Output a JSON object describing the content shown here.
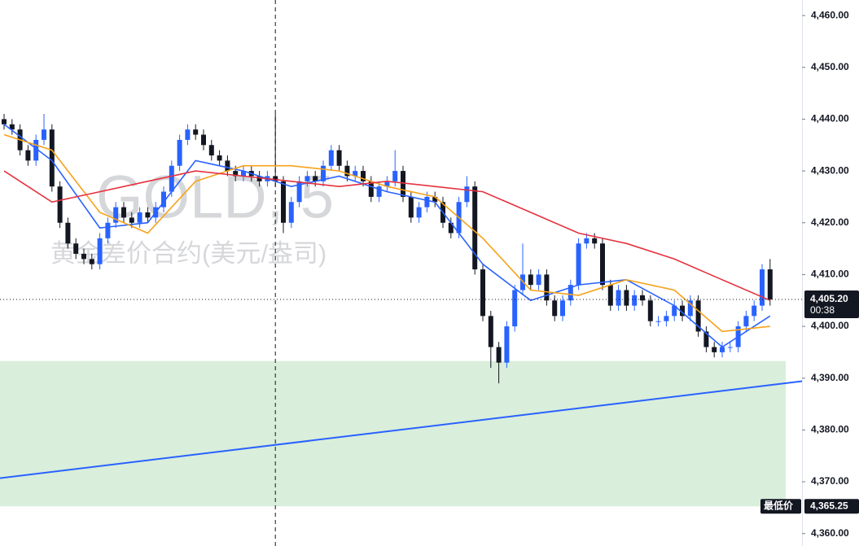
{
  "chart_data": {
    "type": "candlestick",
    "title": "GOLD, 5",
    "subtitle": "黄金差价合约(美元/盎司)",
    "up_color": "#2962ff",
    "down_color": "#131722",
    "open": [
      4440,
      4439,
      4438,
      4434,
      4432,
      4436,
      4438,
      4427,
      4420,
      4416,
      4414,
      4413,
      4412,
      4417,
      4420,
      4423,
      4421,
      4420,
      4422,
      4421,
      4423,
      4426,
      4431,
      4436,
      4438,
      4437,
      4435,
      4433,
      4432,
      4430,
      4429,
      4430,
      4429,
      4428,
      4429,
      4428,
      4420,
      4424,
      4428,
      4429,
      4428,
      4431,
      4434,
      4431,
      4429,
      4430,
      4428,
      4425,
      4427,
      4428,
      4430,
      4425,
      4421,
      4423,
      4425,
      4424,
      4420,
      4418,
      4424,
      4427,
      4411,
      4402,
      4396,
      4393,
      4400,
      4407,
      4410,
      4408,
      4410,
      4405,
      4402,
      4405,
      4408,
      4416,
      4417,
      4416,
      4408,
      4404,
      4407,
      4404,
      4406,
      4405,
      4401,
      4401,
      4402,
      4404,
      4402,
      4405,
      4399,
      4396,
      4395,
      4396,
      4396,
      4400,
      4402,
      4404,
      4411
    ],
    "high": [
      4441,
      4440,
      4439,
      4435,
      4437,
      4441,
      4439,
      4428,
      4421,
      4417,
      4415,
      4414,
      4418,
      4421,
      4424,
      4424,
      4422,
      4423,
      4423,
      4424,
      4427,
      4432,
      4437,
      4439,
      4439,
      4438,
      4436,
      4434,
      4433,
      4431,
      4431,
      4431,
      4430,
      4430,
      4441,
      4429,
      4425,
      4429,
      4430,
      4430,
      4432,
      4435,
      4435,
      4432,
      4431,
      4431,
      4429,
      4428,
      4429,
      4434,
      4431,
      4426,
      4424,
      4426,
      4426,
      4425,
      4421,
      4425,
      4429,
      4428,
      4412,
      4403,
      4397,
      4401,
      4408,
      4416,
      4411,
      4411,
      4411,
      4406,
      4406,
      4409,
      4417,
      4418,
      4418,
      4417,
      4409,
      4408,
      4408,
      4407,
      4407,
      4406,
      4402,
      4403,
      4405,
      4405,
      4406,
      4406,
      4400,
      4397,
      4397,
      4397,
      4401,
      4403,
      4405,
      4412,
      4413
    ],
    "low": [
      4438,
      4437,
      4433,
      4431,
      4431,
      4435,
      4426,
      4419,
      4415,
      4413,
      4412,
      4411,
      4411,
      4416,
      4419,
      4420,
      4419,
      4419,
      4420,
      4420,
      4422,
      4425,
      4430,
      4435,
      4436,
      4434,
      4432,
      4431,
      4429,
      4428,
      4428,
      4428,
      4427,
      4427,
      4427,
      4418,
      4419,
      4423,
      4427,
      4427,
      4427,
      4430,
      4430,
      4428,
      4428,
      4427,
      4424,
      4424,
      4426,
      4427,
      4424,
      4420,
      4420,
      4422,
      4423,
      4419,
      4417,
      4417,
      4423,
      4410,
      4401,
      4392,
      4389,
      4392,
      4399,
      4406,
      4407,
      4407,
      4404,
      4401,
      4401,
      4404,
      4407,
      4415,
      4415,
      4407,
      4403,
      4403,
      4403,
      4403,
      4404,
      4400,
      4400,
      4400,
      4401,
      4401,
      4401,
      4398,
      4395,
      4394,
      4394,
      4395,
      4395,
      4399,
      4401,
      4403,
      4404
    ],
    "close": [
      4439,
      4438,
      4434,
      4432,
      4436,
      4438,
      4427,
      4420,
      4416,
      4414,
      4413,
      4412,
      4417,
      4420,
      4423,
      4421,
      4420,
      4422,
      4421,
      4423,
      4426,
      4431,
      4436,
      4438,
      4437,
      4435,
      4433,
      4432,
      4430,
      4429,
      4430,
      4429,
      4428,
      4429,
      4428,
      4420,
      4424,
      4428,
      4429,
      4428,
      4431,
      4434,
      4431,
      4429,
      4430,
      4428,
      4425,
      4427,
      4428,
      4430,
      4425,
      4421,
      4423,
      4425,
      4424,
      4420,
      4418,
      4424,
      4427,
      4411,
      4402,
      4396,
      4393,
      4400,
      4407,
      4410,
      4408,
      4410,
      4405,
      4402,
      4405,
      4408,
      4416,
      4417,
      4416,
      4408,
      4404,
      4407,
      4404,
      4406,
      4405,
      4401,
      4401,
      4402,
      4404,
      4402,
      4405,
      4399,
      4396,
      4395,
      4396,
      4396,
      4400,
      4402,
      4404,
      4411,
      4405.2
    ],
    "moving_averages": [
      {
        "color": "#2962ff",
        "x": [
          0,
          6,
          12,
          18,
          24,
          30,
          36,
          42,
          48,
          54,
          60,
          66,
          72,
          78,
          84,
          90,
          96
        ],
        "values": [
          4439,
          4432,
          4419,
          4420,
          4432,
          4430,
          4427,
          4429,
          4426,
          4424,
          4412,
          4405,
          4408,
          4409,
          4404,
          4396,
          4402
        ]
      },
      {
        "color": "#f7a21b",
        "x": [
          0,
          6,
          12,
          18,
          24,
          30,
          36,
          42,
          48,
          54,
          60,
          66,
          72,
          78,
          84,
          90,
          96
        ],
        "values": [
          4437,
          4434,
          4422,
          4418,
          4428,
          4431,
          4431,
          4430,
          4427,
          4425,
          4417,
          4407,
          4406,
          4409,
          4407,
          4399,
          4400
        ]
      },
      {
        "color": "#e5323e",
        "x": [
          0,
          6,
          12,
          18,
          24,
          30,
          36,
          42,
          48,
          54,
          60,
          66,
          72,
          78,
          84,
          90,
          96
        ],
        "values": [
          4430,
          4424,
          4426,
          4428,
          4430,
          4429,
          4428,
          4427,
          4428,
          4427,
          4426,
          4422,
          4418,
          4416,
          4413,
          4409,
          4405
        ]
      }
    ],
    "zone": {
      "color": "#d9eedb",
      "values": [
        4365.25,
        4393.3
      ]
    },
    "trendline": {
      "color": "#2962ff",
      "values": [
        4370.7,
        4389.4
      ]
    },
    "crosshair_index": 34,
    "ylim": [
      4357.6,
      4463.0
    ],
    "yticks": [
      {
        "value": 4360,
        "label": "4,360.00"
      },
      {
        "value": 4370,
        "label": "4,370.00"
      },
      {
        "value": 4380,
        "label": "4,380.00"
      },
      {
        "value": 4390,
        "label": "4,390.00"
      },
      {
        "value": 4400,
        "label": "4,400.00"
      },
      {
        "value": 4410,
        "label": "4,410.00"
      },
      {
        "value": 4420,
        "label": "4,420.00"
      },
      {
        "value": 4430,
        "label": "4,430.00"
      },
      {
        "value": 4440,
        "label": "4,440.00"
      },
      {
        "value": 4450,
        "label": "4,450.00"
      },
      {
        "value": 4460,
        "label": "4,460.00"
      }
    ],
    "last_price": {
      "value": 4405.2,
      "label": "4,405.20",
      "countdown": "00:38"
    },
    "lowest_price": {
      "name": "最低价",
      "value": 4365.25,
      "label": "4,365.25"
    }
  }
}
